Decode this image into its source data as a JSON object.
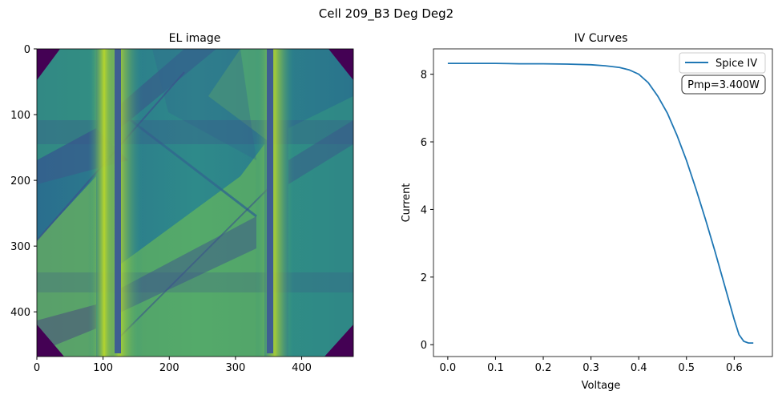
{
  "suptitle": "Cell 209_B3 Deg Deg2",
  "chart_data": [
    {
      "type": "heatmap",
      "title": "EL image",
      "colormap": "viridis",
      "xlim": [
        0,
        478
      ],
      "ylim": [
        468,
        0
      ],
      "xticks": [
        0,
        100,
        200,
        300,
        400
      ],
      "yticks": [
        0,
        100,
        200,
        300,
        400
      ],
      "features": {
        "busbars_x": [
          124,
          354
        ],
        "cracks": "diagonal dark crack lines and inactive regions across the cell"
      }
    },
    {
      "type": "line",
      "title": "IV Curves",
      "xlabel": "Voltage",
      "ylabel": "Current",
      "xlim": [
        -0.03,
        0.68
      ],
      "ylim": [
        -0.35,
        8.75
      ],
      "xticks": [
        "0.0",
        "0.1",
        "0.2",
        "0.3",
        "0.4",
        "0.5",
        "0.6"
      ],
      "yticks": [
        "0",
        "2",
        "4",
        "6",
        "8"
      ],
      "legend": {
        "position": "top-right",
        "entries": [
          "Spice IV"
        ]
      },
      "annotation": "Pmp=3.400W",
      "series": [
        {
          "name": "Spice IV",
          "color": "#1f77b4",
          "x": [
            0.0,
            0.05,
            0.1,
            0.15,
            0.2,
            0.25,
            0.3,
            0.33,
            0.36,
            0.38,
            0.4,
            0.42,
            0.44,
            0.46,
            0.48,
            0.5,
            0.52,
            0.54,
            0.56,
            0.58,
            0.6,
            0.61,
            0.62,
            0.63,
            0.64
          ],
          "y": [
            8.32,
            8.32,
            8.32,
            8.31,
            8.31,
            8.3,
            8.28,
            8.25,
            8.2,
            8.13,
            8.0,
            7.75,
            7.35,
            6.85,
            6.2,
            5.45,
            4.6,
            3.7,
            2.75,
            1.75,
            0.75,
            0.3,
            0.1,
            0.05,
            0.05
          ]
        }
      ]
    }
  ]
}
